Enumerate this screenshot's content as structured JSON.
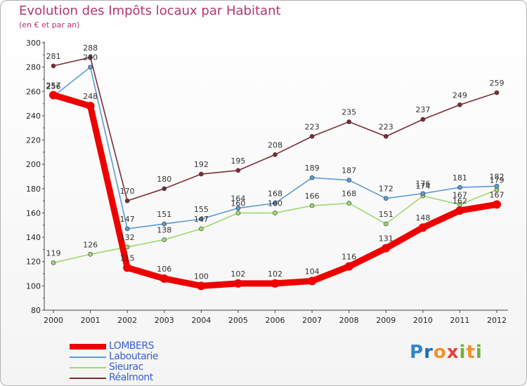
{
  "chart_data": {
    "type": "line",
    "title": "Evolution des Impôts locaux par Habitant",
    "subtitle": "(en € et par an)",
    "xlabel": "",
    "ylabel": "",
    "ylim": [
      80,
      300
    ],
    "yticks": [
      80,
      100,
      120,
      140,
      160,
      180,
      200,
      220,
      240,
      260,
      280,
      300
    ],
    "grid": false,
    "legend_position": "bottom-left",
    "categories": [
      "2000",
      "2001",
      "2002",
      "2003",
      "2004",
      "2005",
      "2006",
      "2007",
      "2008",
      "2009",
      "2010",
      "2011",
      "2012"
    ],
    "series": [
      {
        "name": "LOMBERS",
        "color": "#ee0000",
        "values": [
          257,
          248,
          115,
          106,
          100,
          102,
          102,
          104,
          116,
          131,
          148,
          162,
          167
        ]
      },
      {
        "name": "Laboutarie",
        "color": "#5b9bd5",
        "values": [
          256,
          280,
          147,
          151,
          155,
          164,
          168,
          189,
          187,
          172,
          176,
          181,
          182
        ]
      },
      {
        "name": "Sieurac",
        "color": "#9fd86f",
        "values": [
          119,
          126,
          132,
          138,
          147,
          160,
          160,
          166,
          168,
          151,
          174,
          167,
          179
        ]
      },
      {
        "name": "Réalmont",
        "color": "#7b2d33",
        "values": [
          281,
          288,
          170,
          180,
          192,
          195,
          208,
          223,
          235,
          223,
          237,
          249,
          259
        ]
      }
    ]
  },
  "brand": {
    "letters": [
      "P",
      "r",
      "o",
      "x",
      "i",
      "t",
      "i"
    ]
  }
}
